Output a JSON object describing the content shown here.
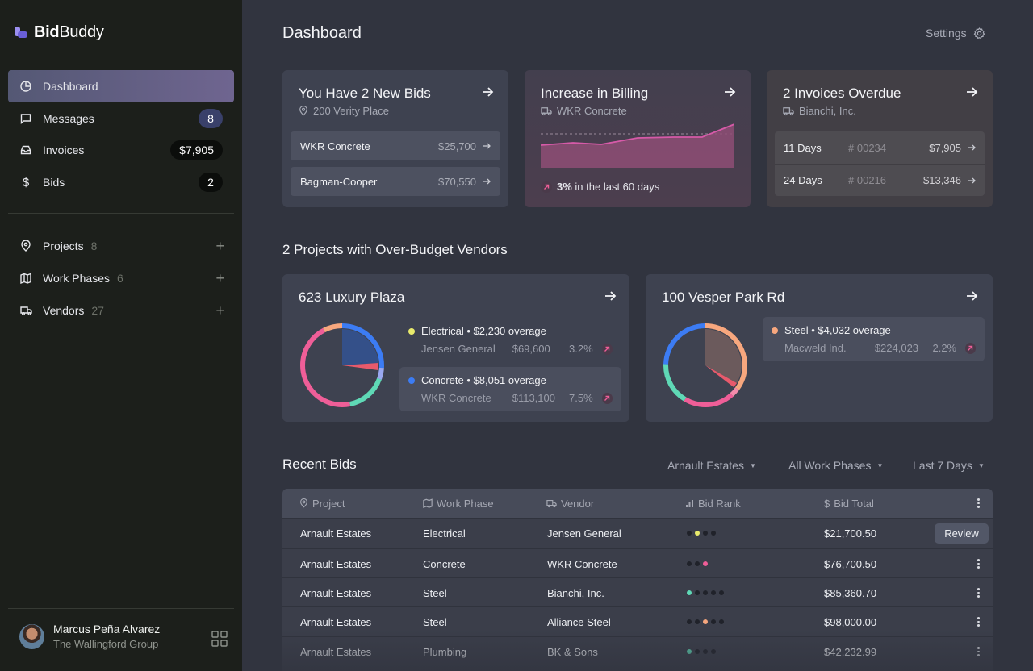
{
  "app": {
    "logo_bold": "Bid",
    "logo_regular": "Buddy"
  },
  "sidebar": {
    "nav": [
      {
        "label": "Dashboard",
        "icon": "pie-chart-icon",
        "active": true
      },
      {
        "label": "Messages",
        "icon": "message-icon",
        "badge": "8"
      },
      {
        "label": "Invoices",
        "icon": "inbox-icon",
        "badge": "$7,905"
      },
      {
        "label": "Bids",
        "icon": "dollar-icon",
        "badge": "2"
      }
    ],
    "groups": [
      {
        "label": "Projects",
        "count": "8",
        "icon": "map-pin-icon"
      },
      {
        "label": "Work Phases",
        "count": "6",
        "icon": "map-icon"
      },
      {
        "label": "Vendors",
        "count": "27",
        "icon": "truck-icon"
      }
    ],
    "user": {
      "name": "Marcus Peña Alvarez",
      "org": "The Wallingford Group"
    }
  },
  "header": {
    "title": "Dashboard",
    "settings_label": "Settings"
  },
  "cards": {
    "new_bids": {
      "title": "You Have 2 New Bids",
      "subtitle": "200 Verity Place",
      "rows": [
        {
          "name": "WKR Concrete",
          "amount": "$25,700"
        },
        {
          "name": "Bagman-Cooper",
          "amount": "$70,550"
        }
      ]
    },
    "billing": {
      "title": "Increase in Billing",
      "subtitle": "WKR Concrete",
      "change": "3%",
      "change_text": " in the last 60 days",
      "color": "#d65aa8"
    },
    "overdue": {
      "title": "2 Invoices Overdue",
      "subtitle": "Bianchi, Inc.",
      "rows": [
        {
          "days": "11 Days",
          "number": "00234",
          "amount": "$7,905"
        },
        {
          "days": "24 Days",
          "number": "00216",
          "amount": "$13,346"
        }
      ]
    }
  },
  "overbudget": {
    "title": "2 Projects with Over-Budget Vendors",
    "projects": [
      {
        "name": "623 Luxury Plaza",
        "vendors": [
          {
            "headline": "Electrical • $2,230 overage",
            "vendor": "Jensen General",
            "total": "$69,600",
            "pct": "3.2%",
            "color": "#e8ea6c"
          },
          {
            "headline": "Concrete • $8,051 overage",
            "vendor": "WKR Concrete",
            "total": "$113,100",
            "pct": "7.5%",
            "color": "#3c7cf4"
          }
        ]
      },
      {
        "name": "100 Vesper Park Rd",
        "vendors": [
          {
            "headline": "Steel • $4,032 overage",
            "vendor": "Macweld Ind.",
            "total": "$224,023",
            "pct": "2.2%",
            "color": "#f7a77e"
          }
        ]
      }
    ]
  },
  "recent_bids": {
    "title": "Recent Bids",
    "filters": [
      "Arnault Estates",
      "All Work Phases",
      "Last 7 Days"
    ],
    "columns": [
      "Project",
      "Work Phase",
      "Vendor",
      "Bid Rank",
      "Bid Total"
    ],
    "action_label": "Review",
    "rows": [
      {
        "project": "Arnault Estates",
        "phase": "Electrical",
        "vendor": "Jensen General",
        "total": "$21,700.50",
        "rank": 2,
        "of": 4,
        "rank_color": "#e8ea6c"
      },
      {
        "project": "Arnault Estates",
        "phase": "Concrete",
        "vendor": "WKR Concrete",
        "total": "$76,700.50",
        "rank": 3,
        "of": 3,
        "rank_color": "#ef5e98"
      },
      {
        "project": "Arnault Estates",
        "phase": "Steel",
        "vendor": "Bianchi, Inc.",
        "total": "$85,360.70",
        "rank": 1,
        "of": 5,
        "rank_color": "#5fd9b6"
      },
      {
        "project": "Arnault Estates",
        "phase": "Steel",
        "vendor": "Alliance Steel",
        "total": "$98,000.00",
        "rank": 3,
        "of": 5,
        "rank_color": "#f7a77e"
      },
      {
        "project": "Arnault Estates",
        "phase": "Plumbing",
        "vendor": "BK & Sons",
        "total": "$42,232.99",
        "rank": 1,
        "of": 4,
        "rank_color": "#5fd9b6"
      }
    ]
  }
}
